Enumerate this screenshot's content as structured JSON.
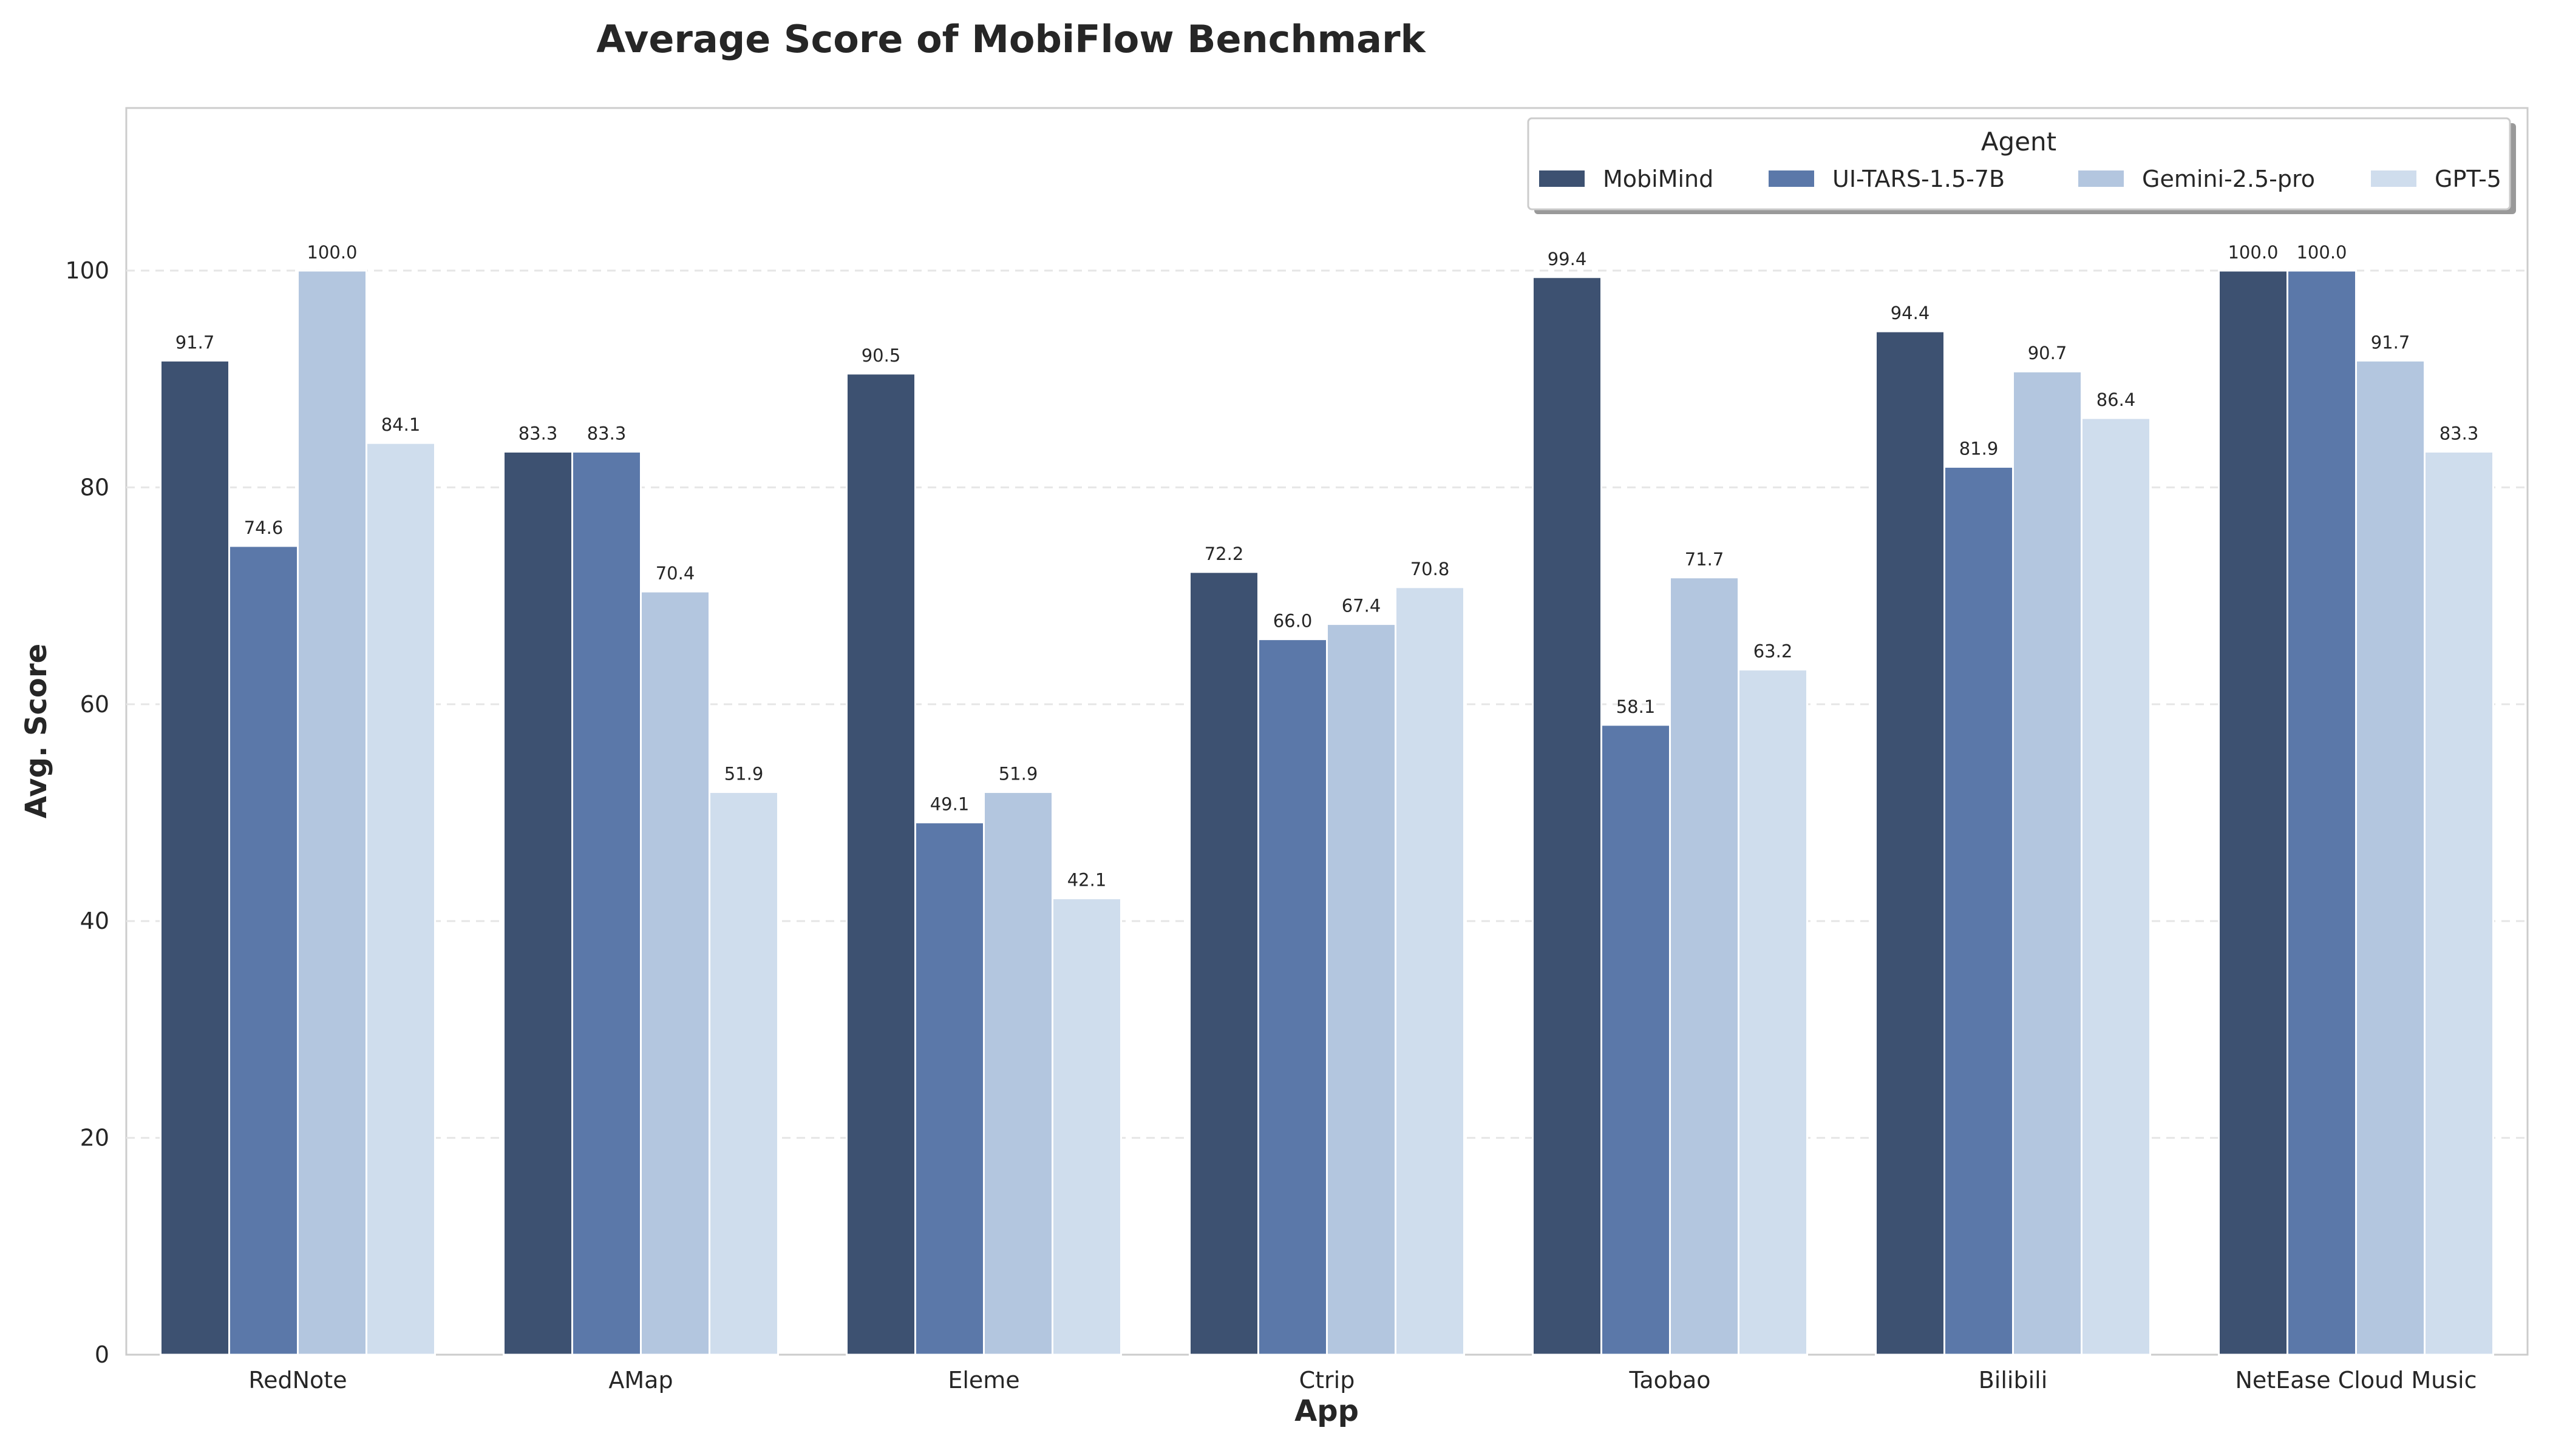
{
  "chart_data": {
    "type": "bar",
    "title": "Average Score of MobiFlow Benchmark",
    "xlabel": "App",
    "ylabel": "Avg. Score",
    "ylim": [
      0,
      115
    ],
    "yticks": [
      0,
      20,
      40,
      60,
      80,
      100
    ],
    "grid": "horizontal dashed",
    "legend_title": "Agent",
    "legend_placement": "top-right",
    "categories": [
      "RedNote",
      "AMap",
      "Eleme",
      "Ctrip",
      "Taobao",
      "Bilibili",
      "NetEase Cloud Music"
    ],
    "series": [
      {
        "name": "MobiMind",
        "color": "#3d5171",
        "values": [
          91.7,
          83.3,
          90.5,
          72.2,
          99.4,
          94.4,
          100.0
        ]
      },
      {
        "name": "UI-TARS-1.5-7B",
        "color": "#5b78a9",
        "values": [
          74.6,
          83.3,
          49.1,
          66.0,
          58.1,
          81.9,
          100.0
        ]
      },
      {
        "name": "Gemini-2.5-pro",
        "color": "#b3c6df",
        "values": [
          100.0,
          70.4,
          51.9,
          67.4,
          71.7,
          90.7,
          91.7
        ]
      },
      {
        "name": "GPT-5",
        "color": "#cfdded",
        "values": [
          84.1,
          51.9,
          42.1,
          70.8,
          63.2,
          86.4,
          83.3
        ]
      }
    ]
  }
}
